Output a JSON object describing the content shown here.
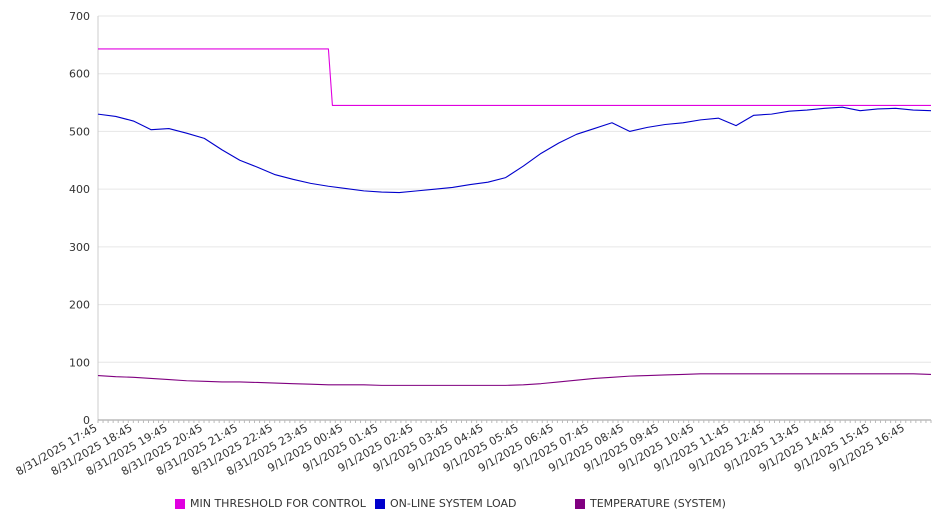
{
  "chart_data": {
    "type": "line",
    "ylim": [
      0,
      700
    ],
    "y_ticks": [
      0,
      100,
      200,
      300,
      400,
      500,
      600,
      700
    ],
    "grid": "horizontal",
    "legend_position": "bottom",
    "x_tick_labels": [
      "8/31/2025 17:45",
      "8/31/2025 18:45",
      "8/31/2025 19:45",
      "8/31/2025 20:45",
      "8/31/2025 21:45",
      "8/31/2025 22:45",
      "8/31/2025 23:45",
      "9/1/2025 00:45",
      "9/1/2025 01:45",
      "9/1/2025 02:45",
      "9/1/2025 03:45",
      "9/1/2025 04:45",
      "9/1/2025 05:45",
      "9/1/2025 06:45",
      "9/1/2025 07:45",
      "9/1/2025 08:45",
      "9/1/2025 09:45",
      "9/1/2025 10:45",
      "9/1/2025 11:45",
      "9/1/2025 12:45",
      "9/1/2025 13:45",
      "9/1/2025 14:45",
      "9/1/2025 15:45",
      "9/1/2025 16:45"
    ],
    "x": [
      "8/31/2025 17:45",
      "8/31/2025 18:15",
      "8/31/2025 18:45",
      "8/31/2025 19:15",
      "8/31/2025 19:45",
      "8/31/2025 20:15",
      "8/31/2025 20:45",
      "8/31/2025 21:15",
      "8/31/2025 21:45",
      "8/31/2025 22:15",
      "8/31/2025 22:45",
      "8/31/2025 23:15",
      "8/31/2025 23:45",
      "9/1/2025 00:15",
      "9/1/2025 00:45",
      "9/1/2025 01:15",
      "9/1/2025 01:45",
      "9/1/2025 02:15",
      "9/1/2025 02:45",
      "9/1/2025 03:15",
      "9/1/2025 03:45",
      "9/1/2025 04:15",
      "9/1/2025 04:45",
      "9/1/2025 05:15",
      "9/1/2025 05:45",
      "9/1/2025 06:15",
      "9/1/2025 06:45",
      "9/1/2025 07:15",
      "9/1/2025 07:45",
      "9/1/2025 08:15",
      "9/1/2025 08:45",
      "9/1/2025 09:15",
      "9/1/2025 09:45",
      "9/1/2025 10:15",
      "9/1/2025 10:45",
      "9/1/2025 11:15",
      "9/1/2025 11:45",
      "9/1/2025 12:15",
      "9/1/2025 12:45",
      "9/1/2025 13:15",
      "9/1/2025 13:45",
      "9/1/2025 14:15",
      "9/1/2025 14:45",
      "9/1/2025 15:15",
      "9/1/2025 15:45",
      "9/1/2025 16:15",
      "9/1/2025 16:45",
      "9/1/2025 17:15"
    ],
    "series": [
      {
        "name": "MIN THRESHOLD FOR CONTROL",
        "color": "#e000e0",
        "values": [
          643,
          643,
          643,
          643,
          643,
          643,
          643,
          643,
          643,
          643,
          643,
          643,
          643,
          643,
          545,
          545,
          545,
          545,
          545,
          545,
          545,
          545,
          545,
          545,
          545,
          545,
          545,
          545,
          545,
          545,
          545,
          545,
          545,
          545,
          545,
          545,
          545,
          545,
          545,
          545,
          545,
          545,
          545,
          545,
          545,
          545,
          545,
          545
        ]
      },
      {
        "name": "ON-LINE SYSTEM LOAD",
        "color": "#0000cc",
        "values": [
          530,
          526,
          518,
          503,
          505,
          497,
          488,
          468,
          450,
          438,
          425,
          417,
          410,
          405,
          401,
          397,
          395,
          394,
          397,
          400,
          403,
          408,
          412,
          420,
          440,
          462,
          480,
          495,
          505,
          515,
          500,
          507,
          512,
          515,
          520,
          523,
          510,
          528,
          530,
          535,
          537,
          540,
          542,
          536,
          539,
          540,
          537,
          536
        ]
      },
      {
        "name": "TEMPERATURE (SYSTEM)",
        "color": "#800080",
        "values": [
          77,
          75,
          74,
          72,
          70,
          68,
          67,
          66,
          66,
          65,
          64,
          63,
          62,
          61,
          61,
          61,
          60,
          60,
          60,
          60,
          60,
          60,
          60,
          60,
          61,
          63,
          66,
          69,
          72,
          74,
          76,
          77,
          78,
          79,
          80,
          80,
          80,
          80,
          80,
          80,
          80,
          80,
          80,
          80,
          80,
          80,
          80,
          79
        ]
      }
    ]
  }
}
